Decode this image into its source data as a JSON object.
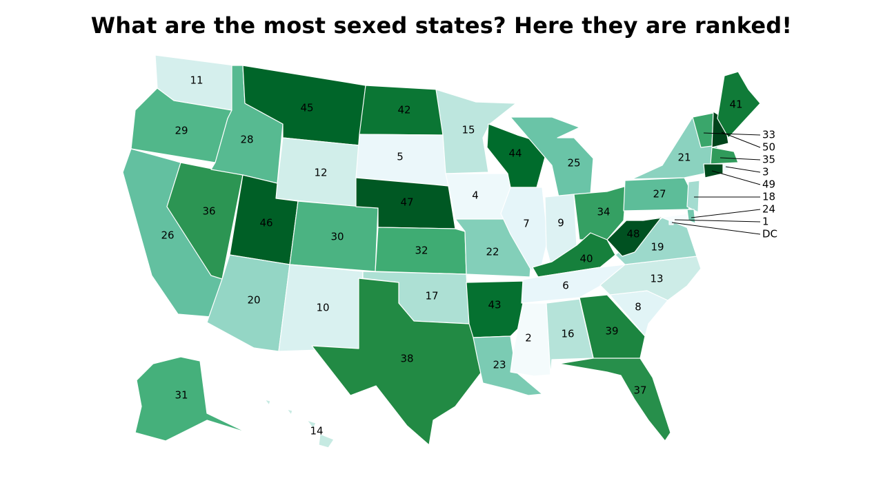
{
  "title": "What are the most sexed states? Here they are ranked!",
  "map": {
    "color_scale": {
      "low": "#f7fcfd",
      "high": "#00441b",
      "min": 1,
      "max": 50
    },
    "states": [
      {
        "code": "WA",
        "rank": 11
      },
      {
        "code": "OR",
        "rank": 29
      },
      {
        "code": "CA",
        "rank": 26
      },
      {
        "code": "NV",
        "rank": 36
      },
      {
        "code": "ID",
        "rank": 28
      },
      {
        "code": "MT",
        "rank": 45
      },
      {
        "code": "WY",
        "rank": 12
      },
      {
        "code": "UT",
        "rank": 46
      },
      {
        "code": "AZ",
        "rank": 20
      },
      {
        "code": "CO",
        "rank": 30
      },
      {
        "code": "NM",
        "rank": 10
      },
      {
        "code": "ND",
        "rank": 42
      },
      {
        "code": "SD",
        "rank": 5
      },
      {
        "code": "NE",
        "rank": 47
      },
      {
        "code": "KS",
        "rank": 32
      },
      {
        "code": "OK",
        "rank": 17
      },
      {
        "code": "TX",
        "rank": 38
      },
      {
        "code": "MN",
        "rank": 15
      },
      {
        "code": "IA",
        "rank": 4
      },
      {
        "code": "MO",
        "rank": 22
      },
      {
        "code": "AR",
        "rank": 43
      },
      {
        "code": "LA",
        "rank": 23
      },
      {
        "code": "WI",
        "rank": 44
      },
      {
        "code": "IL",
        "rank": 7
      },
      {
        "code": "MI",
        "rank": 25
      },
      {
        "code": "IN",
        "rank": 9
      },
      {
        "code": "OH",
        "rank": 34
      },
      {
        "code": "KY",
        "rank": 40
      },
      {
        "code": "TN",
        "rank": 6
      },
      {
        "code": "MS",
        "rank": 2
      },
      {
        "code": "AL",
        "rank": 16
      },
      {
        "code": "GA",
        "rank": 39
      },
      {
        "code": "FL",
        "rank": 37
      },
      {
        "code": "SC",
        "rank": 8
      },
      {
        "code": "NC",
        "rank": 13
      },
      {
        "code": "VA",
        "rank": 19
      },
      {
        "code": "WV",
        "rank": 48
      },
      {
        "code": "PA",
        "rank": 27
      },
      {
        "code": "NY",
        "rank": 21
      },
      {
        "code": "VT",
        "rank": 33
      },
      {
        "code": "NH",
        "rank": 50
      },
      {
        "code": "ME",
        "rank": 41
      },
      {
        "code": "MA",
        "rank": 35
      },
      {
        "code": "RI",
        "rank": 3
      },
      {
        "code": "CT",
        "rank": 49
      },
      {
        "code": "NJ",
        "rank": 18
      },
      {
        "code": "DE",
        "rank": 24
      },
      {
        "code": "MD",
        "rank": 1
      },
      {
        "code": "DC",
        "rank": null
      },
      {
        "code": "AK",
        "rank": 31
      },
      {
        "code": "HI",
        "rank": 14
      }
    ],
    "callouts": [
      "33",
      "50",
      "35",
      "3",
      "49",
      "18",
      "24",
      "1",
      "DC"
    ]
  }
}
